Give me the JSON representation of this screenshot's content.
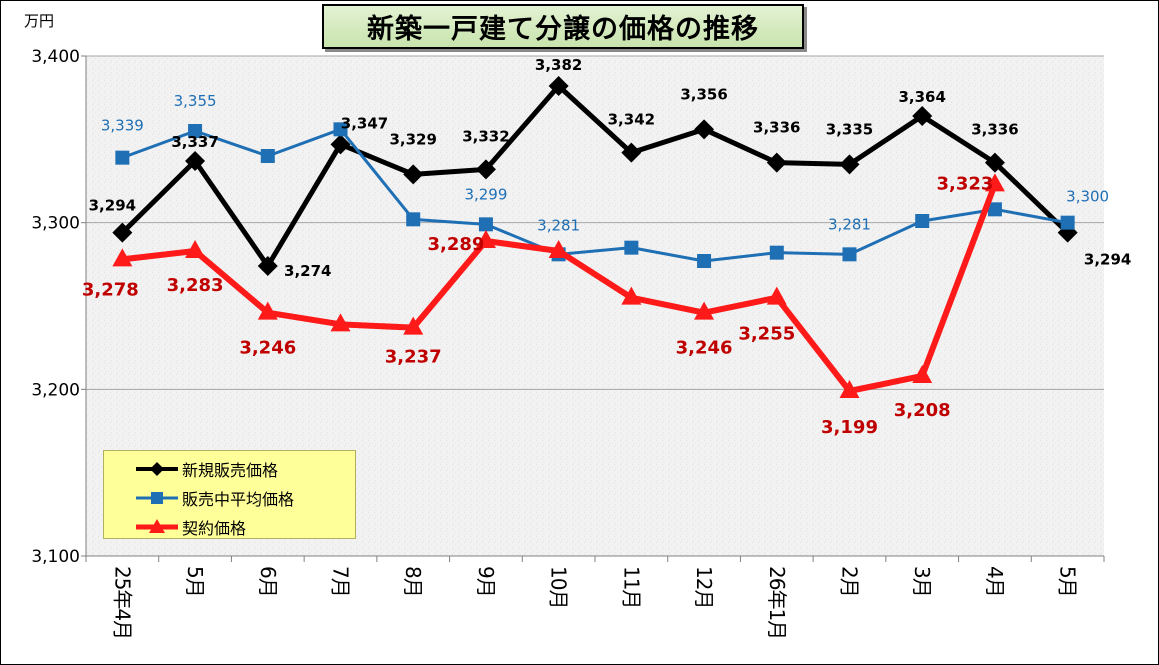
{
  "title": "新築一戸建て分譲の価格の推移",
  "unit_label": "万円",
  "colors": {
    "new_sale": "#000000",
    "on_sale_avg": "#1f6fb5",
    "contract": "#ff1a1a",
    "contract_label": "#c00000",
    "plot_bg": "#f2f2f2",
    "legend_bg": "#ffff99",
    "title_bg": "#d5ecc0"
  },
  "chart_data": {
    "type": "line",
    "title": "新築一戸建て分譲の価格の推移",
    "ylabel": "万円",
    "xlabel": "",
    "ylim": [
      3100,
      3400
    ],
    "yticks": [
      3100,
      3200,
      3300,
      3400
    ],
    "ytick_labels": [
      "3,100",
      "3,200",
      "3,300",
      "3,400"
    ],
    "grid": true,
    "legend_position": "bottom-left",
    "categories": [
      "25年4月",
      "5月",
      "6月",
      "7月",
      "8月",
      "9月",
      "10月",
      "11月",
      "12月",
      "26年1月",
      "2月",
      "3月",
      "4月",
      "5月"
    ],
    "series": [
      {
        "name": "新規販売価格",
        "color": "#000000",
        "marker": "diamond",
        "values": [
          3294,
          3337,
          3274,
          3347,
          3329,
          3332,
          3382,
          3342,
          3356,
          3336,
          3335,
          3364,
          3336,
          3294
        ],
        "labels": [
          "3,294",
          "3,337",
          "3,274",
          "3,347",
          "3,329",
          "3,332",
          "3,382",
          "3,342",
          "3,356",
          "3,336",
          "3,335",
          "3,364",
          "3,336",
          "3,294"
        ]
      },
      {
        "name": "販売中平均価格",
        "color": "#1f6fb5",
        "marker": "square",
        "values": [
          3339,
          3355,
          3340,
          3356,
          3302,
          3299,
          3281,
          3285,
          3277,
          3282,
          3281,
          3301,
          3308,
          3300
        ],
        "labels": [
          "3,339",
          "3,355",
          "",
          "",
          "",
          "3,299",
          "3,281",
          "",
          "",
          "",
          "3,281",
          "",
          "",
          "3,300"
        ]
      },
      {
        "name": "契約価格",
        "color": "#ff1a1a",
        "marker": "triangle",
        "values": [
          3278,
          3283,
          3246,
          3239,
          3237,
          3289,
          3283,
          3255,
          3246,
          3255,
          3199,
          3208,
          3323,
          null
        ],
        "labels": [
          "3,278",
          "3,283",
          "3,246",
          "",
          "3,237",
          "3,289",
          "",
          "",
          "3,246",
          "3,255",
          "3,199",
          "3,208",
          "3,323",
          ""
        ]
      }
    ]
  }
}
